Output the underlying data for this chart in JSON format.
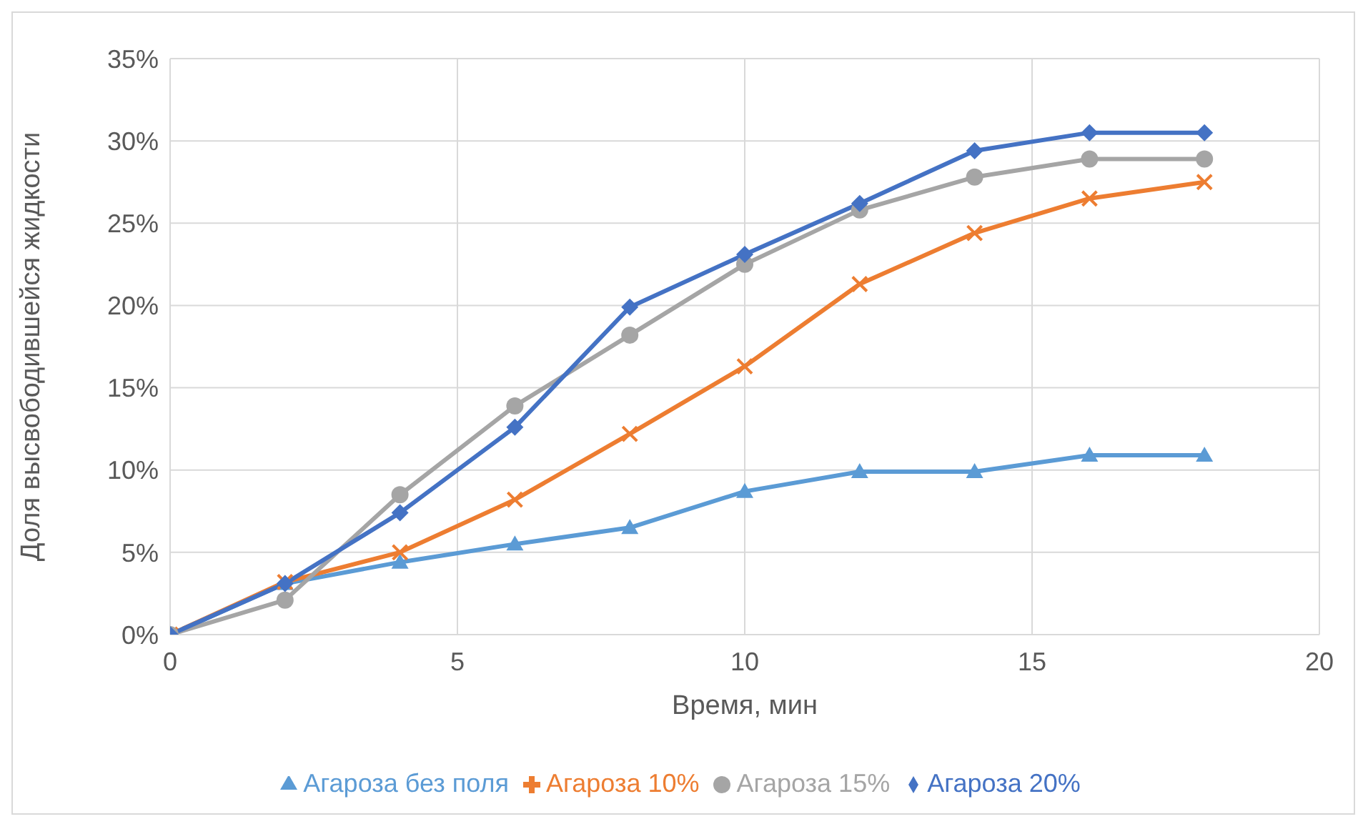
{
  "chart_data": {
    "type": "line",
    "xlabel": "Время, мин",
    "ylabel": "Доля высвободившейся жидкости",
    "x": [
      0,
      2,
      4,
      6,
      8,
      10,
      12,
      14,
      16,
      18
    ],
    "series": [
      {
        "name": "Агароза без поля",
        "color": "#5b9bd5",
        "marker": "triangle",
        "values": [
          0,
          3.1,
          4.4,
          5.5,
          6.5,
          8.7,
          9.9,
          9.9,
          10.9,
          10.9
        ]
      },
      {
        "name": "Агароза 10%",
        "color": "#ed7d31",
        "marker": "cross",
        "values": [
          0,
          3.2,
          5.0,
          8.2,
          12.2,
          16.3,
          21.3,
          24.4,
          26.5,
          27.5
        ]
      },
      {
        "name": "Агароза 15%",
        "color": "#a5a5a5",
        "marker": "circle",
        "values": [
          0,
          2.1,
          8.5,
          13.9,
          18.2,
          22.5,
          25.8,
          27.8,
          28.9,
          28.9
        ]
      },
      {
        "name": "Агароза 20%",
        "color": "#4472c4",
        "marker": "diamond",
        "values": [
          0,
          3.1,
          7.4,
          12.6,
          19.9,
          23.1,
          26.2,
          29.4,
          30.5,
          30.5
        ]
      }
    ],
    "xlim": [
      0,
      20
    ],
    "xticks": [
      0,
      5,
      10,
      15,
      20
    ],
    "ylim": [
      0,
      35
    ],
    "yticks": [
      {
        "value": 0,
        "label": "0%"
      },
      {
        "value": 5,
        "label": "5%"
      },
      {
        "value": 10,
        "label": "10%"
      },
      {
        "value": 15,
        "label": "15%"
      },
      {
        "value": 20,
        "label": "20%"
      },
      {
        "value": 25,
        "label": "25%"
      },
      {
        "value": 30,
        "label": "30%"
      },
      {
        "value": 35,
        "label": "35%"
      }
    ],
    "grid": true,
    "legend": "bottom",
    "line_style": "solid"
  }
}
